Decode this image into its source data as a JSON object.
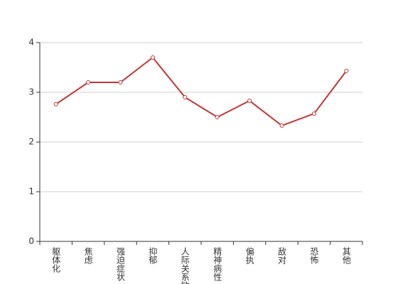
{
  "chart_data": {
    "type": "line",
    "categories": [
      "躯体化",
      "焦虑",
      "强迫症状",
      "抑郁",
      "人际关系敏感",
      "精神病性",
      "偏执",
      "敌对",
      "恐怖",
      "其他"
    ],
    "series": [
      {
        "color": "#c23531",
        "values": [
          2.76,
          3.2,
          3.2,
          3.7,
          2.9,
          2.5,
          2.83,
          2.33,
          2.57,
          3.43
        ]
      }
    ],
    "ylim": [
      0,
      4
    ],
    "yticks": [
      0,
      1,
      2,
      3,
      4
    ],
    "grid": true
  }
}
